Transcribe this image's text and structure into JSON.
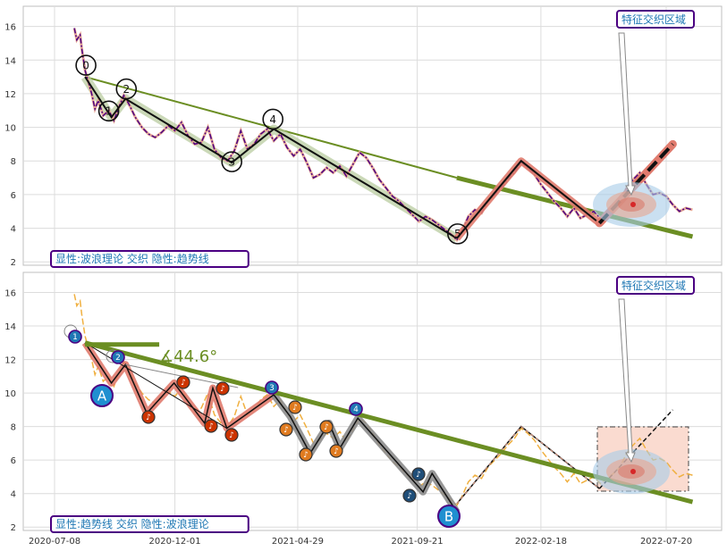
{
  "chart_data": [
    {
      "type": "line",
      "panel": "top",
      "ylim": [
        1.8,
        17.2
      ],
      "yticks": [
        2,
        4,
        6,
        8,
        10,
        12,
        14,
        16
      ],
      "label_box": "显性:波浪理论 交织 隐性:趋势线",
      "callout": "特征交织区域",
      "wave_labels": [
        "0",
        "1",
        "2",
        "3",
        "4",
        "5"
      ],
      "price_series": [
        {
          "x": "2020-08-01",
          "y": 15.9
        },
        {
          "x": "2020-08-04",
          "y": 15.2
        },
        {
          "x": "2020-08-08",
          "y": 15.5
        },
        {
          "x": "2020-08-10",
          "y": 14.7
        },
        {
          "x": "2020-08-14",
          "y": 13.4
        },
        {
          "x": "2020-08-18",
          "y": 12.7
        },
        {
          "x": "2020-08-22",
          "y": 12.0
        },
        {
          "x": "2020-08-26",
          "y": 11.1
        },
        {
          "x": "2020-08-30",
          "y": 11.6
        },
        {
          "x": "2020-09-05",
          "y": 10.7
        },
        {
          "x": "2020-09-12",
          "y": 11.0
        },
        {
          "x": "2020-09-18",
          "y": 10.4
        },
        {
          "x": "2020-09-24",
          "y": 11.2
        },
        {
          "x": "2020-09-30",
          "y": 11.9
        },
        {
          "x": "2020-10-06",
          "y": 11.4
        },
        {
          "x": "2020-10-14",
          "y": 10.6
        },
        {
          "x": "2020-10-22",
          "y": 10.0
        },
        {
          "x": "2020-10-30",
          "y": 9.6
        },
        {
          "x": "2020-11-07",
          "y": 9.4
        },
        {
          "x": "2020-11-15",
          "y": 9.7
        },
        {
          "x": "2020-11-23",
          "y": 10.1
        },
        {
          "x": "2020-12-01",
          "y": 9.8
        },
        {
          "x": "2020-12-09",
          "y": 10.3
        },
        {
          "x": "2020-12-17",
          "y": 9.5
        },
        {
          "x": "2020-12-25",
          "y": 9.0
        },
        {
          "x": "2021-01-02",
          "y": 9.1
        },
        {
          "x": "2021-01-10",
          "y": 10.0
        },
        {
          "x": "2021-01-18",
          "y": 8.7
        },
        {
          "x": "2021-01-26",
          "y": 8.2
        },
        {
          "x": "2021-02-03",
          "y": 8.0
        },
        {
          "x": "2021-02-11",
          "y": 8.6
        },
        {
          "x": "2021-02-19",
          "y": 9.8
        },
        {
          "x": "2021-02-27",
          "y": 8.7
        },
        {
          "x": "2021-03-07",
          "y": 9.0
        },
        {
          "x": "2021-03-15",
          "y": 9.6
        },
        {
          "x": "2021-03-23",
          "y": 9.9
        },
        {
          "x": "2021-03-31",
          "y": 9.2
        },
        {
          "x": "2021-04-08",
          "y": 9.6
        },
        {
          "x": "2021-04-16",
          "y": 8.8
        },
        {
          "x": "2021-04-24",
          "y": 8.3
        },
        {
          "x": "2021-05-02",
          "y": 8.7
        },
        {
          "x": "2021-05-10",
          "y": 7.9
        },
        {
          "x": "2021-05-18",
          "y": 7.0
        },
        {
          "x": "2021-05-26",
          "y": 7.2
        },
        {
          "x": "2021-06-03",
          "y": 7.6
        },
        {
          "x": "2021-06-11",
          "y": 7.3
        },
        {
          "x": "2021-06-19",
          "y": 7.7
        },
        {
          "x": "2021-06-27",
          "y": 7.1
        },
        {
          "x": "2021-07-05",
          "y": 7.8
        },
        {
          "x": "2021-07-13",
          "y": 8.5
        },
        {
          "x": "2021-07-21",
          "y": 8.2
        },
        {
          "x": "2021-07-29",
          "y": 7.6
        },
        {
          "x": "2021-08-06",
          "y": 6.9
        },
        {
          "x": "2021-08-14",
          "y": 6.4
        },
        {
          "x": "2021-08-22",
          "y": 5.9
        },
        {
          "x": "2021-08-30",
          "y": 5.6
        },
        {
          "x": "2021-09-07",
          "y": 5.2
        },
        {
          "x": "2021-09-15",
          "y": 4.8
        },
        {
          "x": "2021-09-23",
          "y": 4.4
        },
        {
          "x": "2021-10-01",
          "y": 4.7
        },
        {
          "x": "2021-10-09",
          "y": 4.5
        },
        {
          "x": "2021-10-17",
          "y": 4.2
        },
        {
          "x": "2021-10-25",
          "y": 3.9
        },
        {
          "x": "2021-11-02",
          "y": 3.6
        },
        {
          "x": "2021-11-08",
          "y": 3.3
        },
        {
          "x": "2021-11-14",
          "y": 3.8
        },
        {
          "x": "2021-11-22",
          "y": 4.7
        },
        {
          "x": "2021-11-30",
          "y": 5.1
        },
        {
          "x": "2021-12-08",
          "y": 4.9
        },
        {
          "x": "2021-12-16",
          "y": 5.6
        },
        {
          "x": "2021-12-24",
          "y": 6.0
        },
        {
          "x": "2022-01-01",
          "y": 6.4
        },
        {
          "x": "2022-01-09",
          "y": 6.9
        },
        {
          "x": "2022-01-17",
          "y": 7.3
        },
        {
          "x": "2022-01-25",
          "y": 7.9
        },
        {
          "x": "2022-02-02",
          "y": 7.6
        },
        {
          "x": "2022-02-10",
          "y": 7.2
        },
        {
          "x": "2022-02-18",
          "y": 6.6
        },
        {
          "x": "2022-02-26",
          "y": 6.1
        },
        {
          "x": "2022-03-06",
          "y": 5.6
        },
        {
          "x": "2022-03-14",
          "y": 5.2
        },
        {
          "x": "2022-03-22",
          "y": 4.7
        },
        {
          "x": "2022-03-30",
          "y": 5.2
        },
        {
          "x": "2022-04-07",
          "y": 4.6
        },
        {
          "x": "2022-04-15",
          "y": 4.8
        },
        {
          "x": "2022-04-23",
          "y": 5.0
        },
        {
          "x": "2022-05-01",
          "y": 4.6
        },
        {
          "x": "2022-05-09",
          "y": 4.9
        },
        {
          "x": "2022-05-17",
          "y": 5.2
        },
        {
          "x": "2022-05-25",
          "y": 5.6
        },
        {
          "x": "2022-06-02",
          "y": 6.4
        },
        {
          "x": "2022-06-10",
          "y": 6.9
        },
        {
          "x": "2022-06-18",
          "y": 7.3
        },
        {
          "x": "2022-06-26",
          "y": 6.6
        },
        {
          "x": "2022-07-04",
          "y": 6.0
        },
        {
          "x": "2022-07-12",
          "y": 6.1
        },
        {
          "x": "2022-07-20",
          "y": 5.9
        },
        {
          "x": "2022-07-28",
          "y": 5.4
        },
        {
          "x": "2022-08-05",
          "y": 5.0
        },
        {
          "x": "2022-08-13",
          "y": 5.2
        },
        {
          "x": "2022-08-21",
          "y": 5.1
        }
      ],
      "wave_points": [
        {
          "x": "2020-08-14",
          "y": 13.0
        },
        {
          "x": "2020-09-15",
          "y": 10.6
        },
        {
          "x": "2020-10-02",
          "y": 11.7
        },
        {
          "x": "2021-02-08",
          "y": 7.9
        },
        {
          "x": "2021-03-31",
          "y": 9.9
        },
        {
          "x": "2021-11-08",
          "y": 3.4
        }
      ],
      "wave_extension": [
        {
          "x": "2021-11-08",
          "y": 3.4
        },
        {
          "x": "2022-01-25",
          "y": 8.0
        },
        {
          "x": "2022-04-30",
          "y": 4.3
        },
        {
          "x": "2022-07-28",
          "y": 9.0
        }
      ],
      "trend_lines": [
        {
          "from": {
            "x": "2020-08-14",
            "y": 13.0
          },
          "to": {
            "x": "2021-11-08",
            "y": 7.0
          }
        },
        {
          "from": {
            "x": "2021-11-08",
            "y": 7.0
          },
          "to": {
            "x": "2022-08-21",
            "y": 3.5
          }
        }
      ]
    },
    {
      "type": "line",
      "panel": "bottom",
      "ylim": [
        1.8,
        17.2
      ],
      "yticks": [
        2,
        4,
        6,
        8,
        10,
        12,
        14,
        16
      ],
      "xticks": [
        "2020-07-08",
        "2020-12-01",
        "2021-04-29",
        "2021-09-21",
        "2022-02-18",
        "2022-07-20"
      ],
      "label_box": "显性:趋势线 交织 隐性:波浪理论",
      "callout": "特征交织区域",
      "angle_label": "∡44.6°",
      "big_labels": [
        "A",
        "B"
      ],
      "small_labels": [
        "1",
        "2",
        "3",
        "4"
      ],
      "trend_main": {
        "from": {
          "x": "2020-08-14",
          "y": 13.0
        },
        "to": {
          "x": "2022-08-21",
          "y": 3.5
        }
      },
      "trend_flat": {
        "from": {
          "x": "2020-08-14",
          "y": 12.9
        },
        "to": {
          "x": "2020-11-12",
          "y": 12.9
        }
      },
      "abc_path": [
        {
          "x": "2020-08-14",
          "y": 13.0
        },
        {
          "x": "2020-09-15",
          "y": 10.6
        },
        {
          "x": "2020-10-02",
          "y": 11.7
        },
        {
          "x": "2020-10-28",
          "y": 8.8
        },
        {
          "x": "2020-11-30",
          "y": 10.6
        },
        {
          "x": "2021-01-06",
          "y": 8.2
        },
        {
          "x": "2021-01-16",
          "y": 10.3
        },
        {
          "x": "2021-02-02",
          "y": 7.9
        },
        {
          "x": "2021-03-31",
          "y": 9.9
        },
        {
          "x": "2021-04-20",
          "y": 8.6
        },
        {
          "x": "2021-05-14",
          "y": 6.4
        },
        {
          "x": "2021-06-06",
          "y": 8.2
        },
        {
          "x": "2021-06-19",
          "y": 6.7
        },
        {
          "x": "2021-07-11",
          "y": 8.5
        },
        {
          "x": "2021-09-28",
          "y": 4.1
        },
        {
          "x": "2021-10-09",
          "y": 5.2
        },
        {
          "x": "2021-11-08",
          "y": 2.9
        }
      ],
      "abc_extension": [
        {
          "x": "2021-11-08",
          "y": 3.4
        },
        {
          "x": "2022-01-25",
          "y": 8.0
        },
        {
          "x": "2022-04-30",
          "y": 4.3
        },
        {
          "x": "2022-07-28",
          "y": 9.0
        }
      ]
    }
  ]
}
